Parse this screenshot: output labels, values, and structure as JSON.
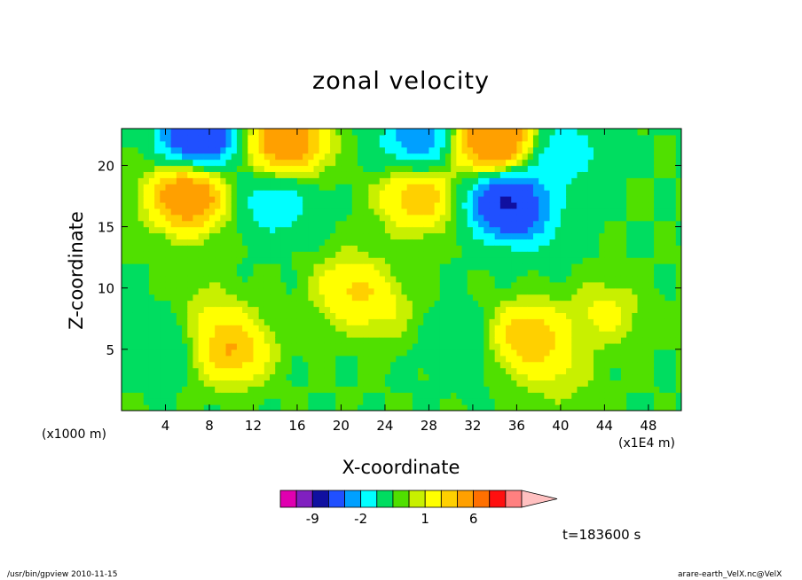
{
  "chart_data": {
    "type": "heatmap",
    "title": "zonal velocity",
    "xlabel": "X-coordinate",
    "ylabel": "Z-coordinate",
    "x_unit_left": "(x1000 m)",
    "x_unit_right": "(x1E4 m)",
    "xlim": [
      0,
      51
    ],
    "ylim": [
      0,
      23
    ],
    "xticks": [
      4,
      8,
      12,
      16,
      20,
      24,
      28,
      32,
      36,
      40,
      44,
      48
    ],
    "yticks": [
      5,
      10,
      15,
      20
    ],
    "grid": false,
    "colorbar": {
      "orientation": "horizontal",
      "placement": "bottom",
      "levels": [
        -12,
        -9,
        -6,
        -3,
        -2,
        -1,
        0,
        0.5,
        1,
        2,
        3,
        6,
        9,
        12
      ],
      "colors": [
        "#e000b0",
        "#8020c0",
        "#1010a0",
        "#2050ff",
        "#00a0ff",
        "#00ffff",
        "#00dd60",
        "#50e000",
        "#c8f000",
        "#ffff00",
        "#ffd000",
        "#ffa000",
        "#ff7000",
        "#ff1010",
        "#ff8080",
        "#ffc0c0"
      ],
      "labels": [
        {
          "text": "-9",
          "level": -9
        },
        {
          "text": "-2",
          "level": -2
        },
        {
          "text": "1",
          "level": 1
        },
        {
          "text": "6",
          "level": 6
        }
      ]
    },
    "features": [
      {
        "x": 6,
        "z": 17.5,
        "value": 5
      },
      {
        "x": 7,
        "z": 22.5,
        "value": -6
      },
      {
        "x": 14,
        "z": 17,
        "value": -2
      },
      {
        "x": 15,
        "z": 22,
        "value": 5
      },
      {
        "x": 21,
        "z": 10,
        "value": 2
      },
      {
        "x": 27,
        "z": 17.5,
        "value": 3
      },
      {
        "x": 27,
        "z": 22,
        "value": -3
      },
      {
        "x": 34,
        "z": 22,
        "value": 6
      },
      {
        "x": 35,
        "z": 17,
        "value": -6
      },
      {
        "x": 40,
        "z": 21,
        "value": -2
      },
      {
        "x": 38,
        "z": 15,
        "value": -1
      },
      {
        "x": 4,
        "z": 5.5,
        "value": -1
      },
      {
        "x": 31,
        "z": 5.5,
        "value": -1
      },
      {
        "x": 37,
        "z": 6,
        "value": 3
      },
      {
        "x": 10,
        "z": 5,
        "value": 3
      },
      {
        "x": 8,
        "z": 8,
        "value": 0.8
      },
      {
        "x": 24,
        "z": 8,
        "value": 0.8
      },
      {
        "x": 44,
        "z": 8,
        "value": 1.2
      },
      {
        "x": 40,
        "z": 3,
        "value": 0.8
      }
    ]
  },
  "time_label": "t=183600 s",
  "footer_left": "/usr/bin/gpview   2010-11-15",
  "footer_right": "arare-earth_VelX.nc@VelX"
}
